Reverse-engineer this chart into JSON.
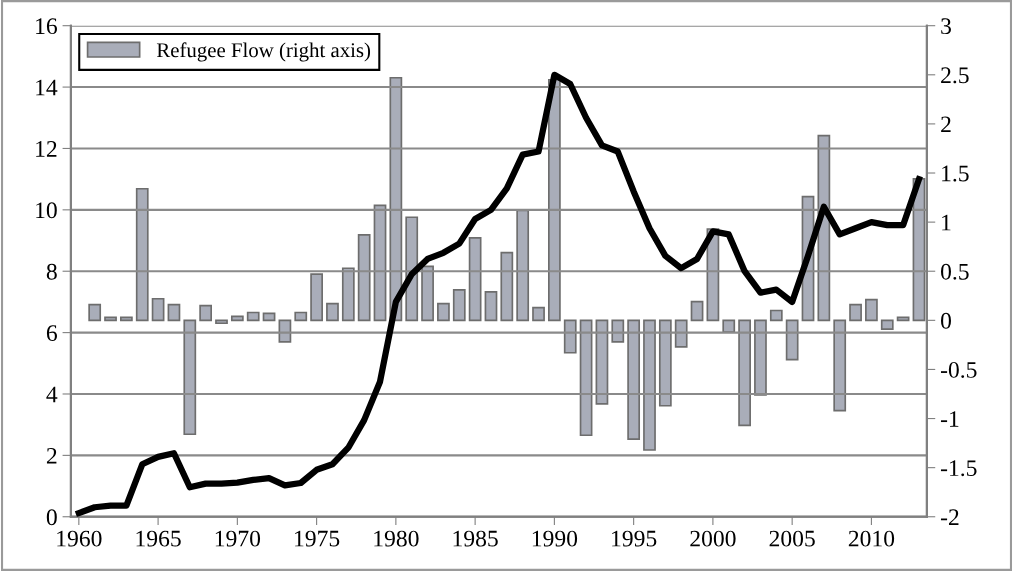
{
  "chart_data": {
    "type": "bar",
    "x": [
      1960,
      1961,
      1962,
      1963,
      1964,
      1965,
      1966,
      1967,
      1968,
      1969,
      1970,
      1971,
      1972,
      1973,
      1974,
      1975,
      1976,
      1977,
      1978,
      1979,
      1980,
      1981,
      1982,
      1983,
      1984,
      1985,
      1986,
      1987,
      1988,
      1989,
      1990,
      1991,
      1992,
      1993,
      1994,
      1995,
      1996,
      1997,
      1998,
      1999,
      2000,
      2001,
      2002,
      2003,
      2004,
      2005,
      2006,
      2007,
      2008,
      2009,
      2010,
      2011,
      2012,
      2013
    ],
    "series": [
      {
        "name": null,
        "type": "line",
        "color": "#000000",
        "values": [
          0.12,
          0.31,
          0.36,
          0.36,
          1.71,
          1.95,
          2.07,
          0.96,
          1.08,
          1.08,
          1.11,
          1.2,
          1.26,
          1.02,
          1.1,
          1.53,
          1.71,
          2.25,
          3.15,
          4.4,
          7.0,
          7.9,
          8.4,
          8.6,
          8.9,
          9.7,
          10.0,
          10.7,
          11.8,
          11.9,
          14.4,
          14.1,
          13.0,
          12.1,
          11.9,
          10.6,
          9.4,
          8.5,
          8.1,
          8.4,
          9.3,
          9.2,
          8.0,
          7.3,
          7.4,
          7.0,
          8.5,
          10.1,
          9.2,
          9.4,
          9.6,
          9.5,
          9.5,
          11.0
        ]
      },
      {
        "name": "Refugee Flow (right axis)",
        "axis": "y2",
        "color": "#a9adb9",
        "values": [
          null,
          0.16,
          0.03,
          0.03,
          1.34,
          0.22,
          0.16,
          -1.16,
          0.15,
          -0.03,
          0.04,
          0.08,
          0.07,
          -0.22,
          0.08,
          0.47,
          0.17,
          0.53,
          0.87,
          1.17,
          2.47,
          1.05,
          0.55,
          0.17,
          0.31,
          0.84,
          0.29,
          0.69,
          1.12,
          0.13,
          2.45,
          -0.33,
          -1.17,
          -0.85,
          -0.22,
          -1.21,
          -1.32,
          -0.87,
          -0.27,
          0.19,
          0.93,
          -0.12,
          -1.07,
          -0.76,
          0.1,
          -0.4,
          1.26,
          1.88,
          -0.92,
          0.16,
          0.21,
          -0.09,
          0.03,
          1.44
        ]
      }
    ],
    "xlim": [
      1959.5,
      2013.5
    ],
    "xticks": [
      1960,
      1965,
      1970,
      1975,
      1980,
      1985,
      1990,
      1995,
      2000,
      2005,
      2010
    ],
    "ylim": [
      0,
      16
    ],
    "yticks": [
      0,
      2,
      4,
      6,
      8,
      10,
      12,
      14,
      16
    ],
    "y2lim": [
      -2,
      3
    ],
    "y2ticks": [
      -2,
      -1.5,
      -1,
      -0.5,
      0,
      0.5,
      1,
      1.5,
      2,
      2.5,
      3
    ],
    "grid": "y",
    "legend": "top left"
  }
}
